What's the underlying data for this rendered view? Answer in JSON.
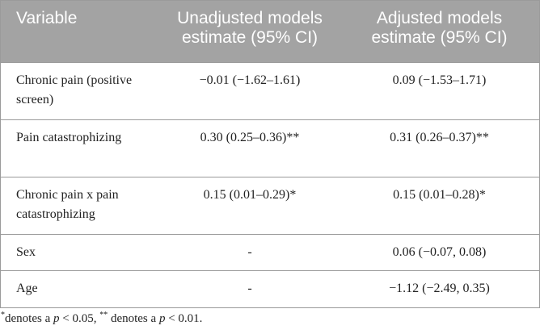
{
  "table": {
    "headers": [
      "Variable",
      "Unadjusted models estimate (95% CI)",
      "Adjusted models estimate (95% CI)"
    ],
    "rows": [
      {
        "variable": "Chronic pain (positive screen)",
        "unadjusted": "−0.01 (−1.62–1.61)",
        "adjusted": "0.09 (−1.53–1.71)"
      },
      {
        "variable": "Pain catastrophizing",
        "unadjusted": "0.30 (0.25–0.36)**",
        "adjusted": "0.31 (0.26–0.37)**"
      },
      {
        "variable": "Chronic pain x pain catastrophizing",
        "unadjusted": "0.15 (0.01–0.29)*",
        "adjusted": "0.15 (0.01–0.28)*"
      },
      {
        "variable": "Sex",
        "unadjusted": "-",
        "adjusted": "0.06 (−0.07, 0.08)"
      },
      {
        "variable": "Age",
        "unadjusted": "-",
        "adjusted": "−1.12 (−2.49, 0.35)"
      }
    ]
  },
  "footnote": {
    "star1": "*",
    "text1": "denotes a ",
    "p1": "p",
    "cond1": " < 0.05, ",
    "star2": "**",
    "text2": " denotes a ",
    "p2": "p",
    "cond2": " < 0.01."
  }
}
